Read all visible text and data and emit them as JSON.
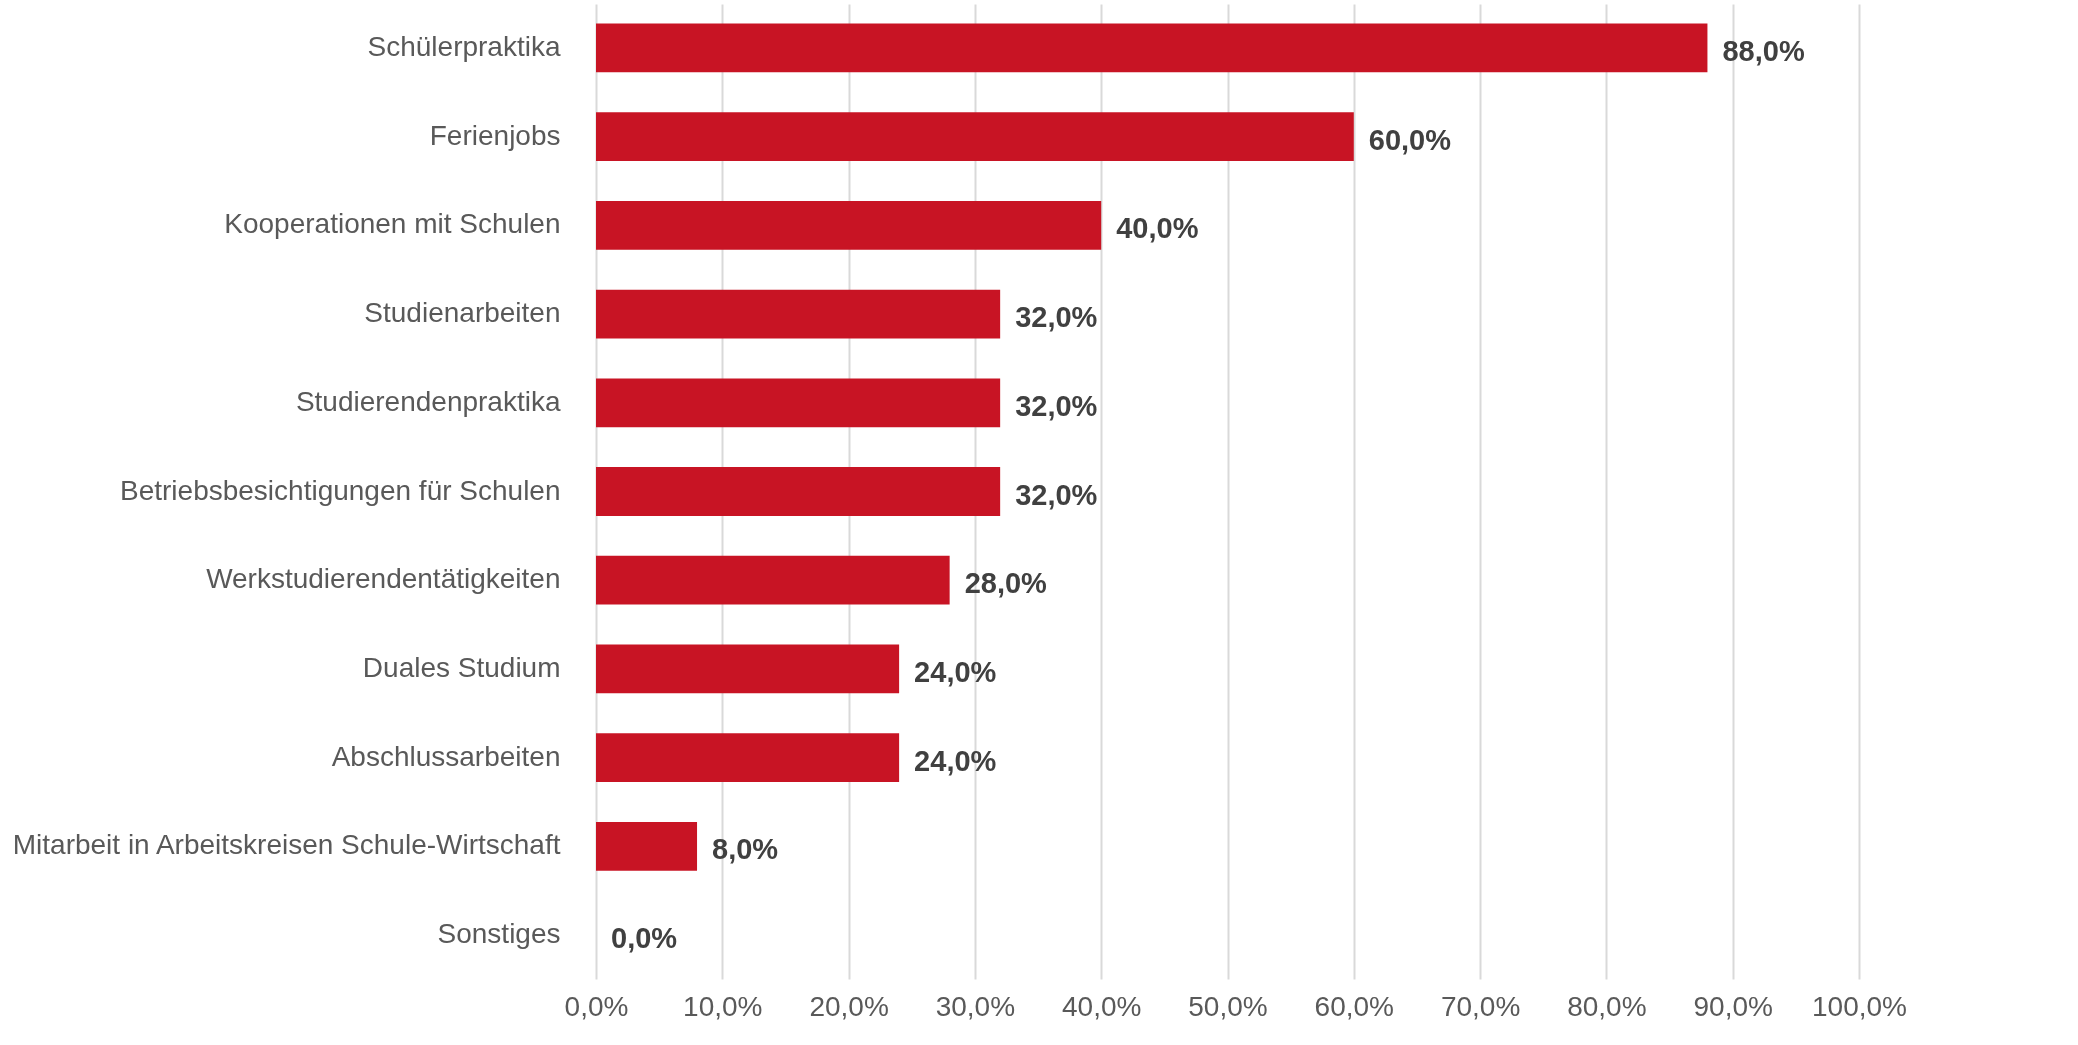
{
  "chart_data": {
    "type": "bar",
    "orientation": "horizontal",
    "categories": [
      "Schülerpraktika",
      "Ferienjobs",
      "Kooperationen mit Schulen",
      "Studienarbeiten",
      "Studierendenpraktika",
      "Betriebsbesichtigungen für Schulen",
      "Werkstudierendentätigkeiten",
      "Duales Studium",
      "Abschlussarbeiten",
      "Mitarbeit in Arbeitskreisen Schule-Wirtschaft",
      "Sonstiges"
    ],
    "values": [
      88,
      60,
      40,
      32,
      32,
      32,
      28,
      24,
      24,
      8,
      0
    ],
    "value_labels": [
      "88,0%",
      "60,0%",
      "40,0%",
      "32,0%",
      "32,0%",
      "32,0%",
      "28,0%",
      "24,0%",
      "24,0%",
      "8,0%",
      "0,0%"
    ],
    "color": "#c81424",
    "xlim": [
      0,
      100
    ],
    "xticks": [
      {
        "value": 0,
        "label": "0,0%"
      },
      {
        "value": 10,
        "label": "10,0%"
      },
      {
        "value": 20,
        "label": "20,0%"
      },
      {
        "value": 30,
        "label": "30,0%"
      },
      {
        "value": 40,
        "label": "40,0%"
      },
      {
        "value": 50,
        "label": "50,0%"
      },
      {
        "value": 60,
        "label": "60,0%"
      },
      {
        "value": 70,
        "label": "70,0%"
      },
      {
        "value": 80,
        "label": "80,0%"
      },
      {
        "value": 90,
        "label": "90,0%"
      },
      {
        "value": 100,
        "label": "100,0%"
      }
    ],
    "grid": "x"
  }
}
